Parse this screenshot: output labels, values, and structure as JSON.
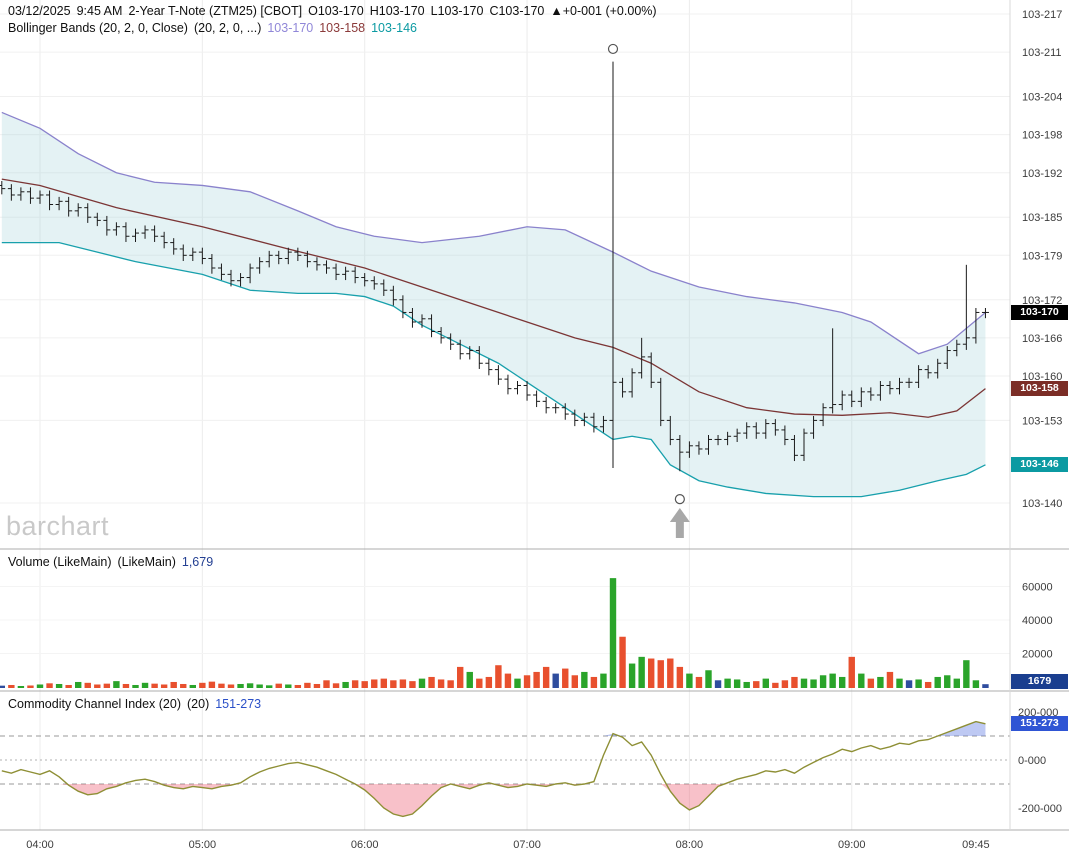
{
  "header": {
    "date": "03/12/2025",
    "time": "9:45 AM",
    "title": "2-Year T-Note (ZTM25) [CBOT]",
    "open": "O103-170",
    "high": "H103-170",
    "low": "L103-170",
    "close": "C103-170",
    "change": "▲+0-001 (+0.00%)",
    "bb_label1": "Bollinger Bands (20, 2, 0, Close)",
    "bb_label2": "(20, 2, 0, ...)",
    "bb_upper_value": "103-170",
    "bb_middle_value": "103-158",
    "bb_lower_value": "103-146"
  },
  "volume_panel": {
    "label1": "Volume (LikeMain)",
    "label2": "(LikeMain)",
    "value": "1,679",
    "badge": "1679"
  },
  "cci_panel": {
    "label1": "Commodity Channel Index (20)",
    "label2": "(20)",
    "value": "151-273",
    "badge": "151-273"
  },
  "badges": {
    "last_price": "103-170",
    "bb_middle": "103-158",
    "bb_lower": "103-146"
  },
  "watermark": "barchart",
  "colors": {
    "bb_upper": "#8a82cc",
    "bb_middle": "#7b3535",
    "bb_lower": "#18a0ac",
    "band_fill": "rgba(147,205,211,0.25)",
    "candle": "#1a1a1a",
    "vol_up": "#2aa42a",
    "vol_down": "#e8502e",
    "vol_flat": "#2f4d9e",
    "cci_line": "#8e8f35",
    "cci_below_fill": "rgba(237,92,112,0.38)",
    "cci_above_fill": "rgba(92,120,226,0.40)",
    "grid": "#ececec",
    "hgrid": "#f0f0f0",
    "divider": "#adadad",
    "badge_last_bg": "#000000",
    "badge_mid_bg": "#7b2d26",
    "badge_low_bg": "#0b9aa2",
    "badge_vol_bg": "#1a3e8f",
    "badge_cci_bg": "#2f55d4",
    "hdr_upper": "#9087d8",
    "hdr_mid": "#8b3a3a",
    "hdr_low": "#0b9aa2",
    "hdr_vol": "#233f92",
    "hdr_cci": "#2b50c8",
    "annotation": "#555555",
    "arrow": "#a8a8a8"
  },
  "chart_data": {
    "type": "ohlc_with_indicators",
    "price_unit_note": "values are 32nds over 103; 17.0 renders as 103-170",
    "opens_rule": "previous close",
    "closes": [
      18.95,
      18.85,
      18.9,
      18.8,
      18.85,
      18.7,
      18.75,
      18.6,
      18.65,
      18.5,
      18.45,
      18.3,
      18.35,
      18.2,
      18.25,
      18.3,
      18.2,
      18.1,
      18.0,
      17.9,
      17.95,
      17.85,
      17.7,
      17.6,
      17.5,
      17.55,
      17.7,
      17.8,
      17.9,
      17.85,
      17.95,
      17.9,
      17.8,
      17.75,
      17.7,
      17.6,
      17.65,
      17.55,
      17.5,
      17.45,
      17.35,
      17.2,
      17.0,
      16.85,
      16.9,
      16.7,
      16.6,
      16.5,
      16.35,
      16.4,
      16.2,
      16.1,
      15.95,
      15.8,
      15.85,
      15.7,
      15.6,
      15.5,
      15.5,
      15.4,
      15.3,
      15.35,
      15.2,
      15.3,
      15.9,
      15.75,
      16.05,
      16.3,
      15.9,
      15.3,
      15.0,
      14.8,
      14.9,
      14.85,
      15.0,
      15.0,
      15.05,
      15.1,
      15.2,
      15.1,
      15.25,
      15.15,
      15.0,
      14.75,
      15.1,
      15.3,
      15.5,
      15.55,
      15.7,
      15.6,
      15.75,
      15.7,
      15.85,
      15.8,
      15.9,
      15.9,
      16.1,
      16.05,
      16.2,
      16.4,
      16.5,
      16.6,
      17.0,
      17.0
    ],
    "bar_overrides": {
      "64": {
        "high": 20.95,
        "low": 14.55
      },
      "67": {
        "high": 16.6
      },
      "71": {
        "low": 14.5
      },
      "87": {
        "high": 16.75
      },
      "101": {
        "high": 17.75
      }
    },
    "bollinger": {
      "upper": [
        [
          0,
          20.15
        ],
        [
          4,
          19.9
        ],
        [
          8,
          19.5
        ],
        [
          12,
          19.2
        ],
        [
          16,
          19.05
        ],
        [
          21,
          19.0
        ],
        [
          26,
          18.9
        ],
        [
          31,
          18.6
        ],
        [
          35,
          18.35
        ],
        [
          39,
          18.2
        ],
        [
          44,
          18.1
        ],
        [
          50,
          18.2
        ],
        [
          55,
          18.35
        ],
        [
          59,
          18.3
        ],
        [
          64,
          17.95
        ],
        [
          68,
          17.65
        ],
        [
          73,
          17.4
        ],
        [
          78,
          17.25
        ],
        [
          83,
          17.15
        ],
        [
          88,
          17.0
        ],
        [
          91,
          16.85
        ],
        [
          96,
          16.35
        ],
        [
          99,
          16.5
        ],
        [
          103,
          17.0
        ]
      ],
      "middle": [
        [
          0,
          19.1
        ],
        [
          4,
          19.0
        ],
        [
          12,
          18.65
        ],
        [
          21,
          18.35
        ],
        [
          30,
          18.0
        ],
        [
          38,
          17.7
        ],
        [
          46,
          17.3
        ],
        [
          55,
          16.85
        ],
        [
          60,
          16.6
        ],
        [
          64,
          16.45
        ],
        [
          68,
          16.2
        ],
        [
          73,
          15.75
        ],
        [
          78,
          15.5
        ],
        [
          83,
          15.4
        ],
        [
          88,
          15.38
        ],
        [
          93,
          15.42
        ],
        [
          97,
          15.35
        ],
        [
          100,
          15.45
        ],
        [
          103,
          15.8
        ]
      ],
      "lower": [
        [
          0,
          18.1
        ],
        [
          6,
          18.1
        ],
        [
          10,
          17.95
        ],
        [
          14,
          17.8
        ],
        [
          21,
          17.6
        ],
        [
          26,
          17.35
        ],
        [
          31,
          17.3
        ],
        [
          35,
          17.3
        ],
        [
          38,
          17.25
        ],
        [
          41,
          17.1
        ],
        [
          44,
          16.8
        ],
        [
          48,
          16.5
        ],
        [
          52,
          16.2
        ],
        [
          55,
          15.9
        ],
        [
          58,
          15.6
        ],
        [
          61,
          15.3
        ],
        [
          64,
          15.0
        ],
        [
          66,
          15.05
        ],
        [
          68,
          15.0
        ],
        [
          70,
          14.6
        ],
        [
          73,
          14.35
        ],
        [
          76,
          14.25
        ],
        [
          80,
          14.15
        ],
        [
          85,
          14.1
        ],
        [
          90,
          14.1
        ],
        [
          94,
          14.2
        ],
        [
          98,
          14.35
        ],
        [
          101,
          14.45
        ],
        [
          103,
          14.6
        ]
      ]
    },
    "volume": [
      800,
      1200,
      600,
      900,
      1500,
      2200,
      1800,
      1200,
      3000,
      2500,
      1500,
      2000,
      3500,
      1800,
      1200,
      2500,
      2000,
      1500,
      3000,
      1800,
      1200,
      2500,
      3200,
      2000,
      1500,
      1800,
      2200,
      1500,
      1000,
      2000,
      1500,
      1200,
      2500,
      1800,
      4000,
      2200,
      3000,
      4000,
      3500,
      4500,
      5000,
      4000,
      4500,
      3500,
      5000,
      6000,
      4500,
      4000,
      12000,
      9000,
      5000,
      6000,
      13000,
      8000,
      5000,
      7000,
      9000,
      12000,
      8000,
      11000,
      7000,
      9000,
      6000,
      8000,
      65000,
      30000,
      14000,
      18000,
      17000,
      16000,
      17000,
      12000,
      8000,
      6000,
      10000,
      4000,
      5000,
      4500,
      3000,
      3500,
      5000,
      2500,
      4000,
      6000,
      5000,
      4500,
      7000,
      8000,
      6000,
      18000,
      8000,
      5000,
      6000,
      9000,
      5000,
      4000,
      4500,
      3000,
      6000,
      7000,
      5000,
      16000,
      4000,
      1679
    ],
    "cci": [
      -45,
      -55,
      -40,
      -50,
      -60,
      -45,
      -70,
      -105,
      -130,
      -145,
      -140,
      -120,
      -110,
      -95,
      -85,
      -80,
      -90,
      -105,
      -115,
      -120,
      -110,
      -115,
      -120,
      -110,
      -105,
      -95,
      -70,
      -50,
      -35,
      -25,
      -15,
      -10,
      -20,
      -30,
      -45,
      -60,
      -80,
      -100,
      -125,
      -160,
      -200,
      -225,
      -235,
      -225,
      -190,
      -150,
      -115,
      -100,
      -110,
      -120,
      -105,
      -95,
      -105,
      -115,
      -110,
      -100,
      -105,
      -110,
      -100,
      -95,
      -105,
      -100,
      -90,
      20,
      110,
      95,
      60,
      75,
      20,
      -60,
      -130,
      -180,
      -208,
      -190,
      -150,
      -110,
      -95,
      -80,
      -70,
      -60,
      -45,
      -50,
      -40,
      -55,
      -30,
      -10,
      10,
      25,
      45,
      35,
      50,
      60,
      45,
      55,
      70,
      65,
      80,
      85,
      100,
      115,
      130,
      145,
      160,
      151
    ],
    "cci_thresholds": {
      "upper": 100,
      "lower": -100,
      "zero": 0
    },
    "x_ticks": [
      {
        "bar": 4,
        "label": "04:00"
      },
      {
        "bar": 21,
        "label": "05:00"
      },
      {
        "bar": 38,
        "label": "06:00"
      },
      {
        "bar": 55,
        "label": "07:00"
      },
      {
        "bar": 72,
        "label": "08:00"
      },
      {
        "bar": 89,
        "label": "09:00"
      },
      {
        "bar": 102,
        "label": "09:45",
        "grid": false
      }
    ],
    "price_axis": [
      {
        "label": "103-217",
        "value": 21.7
      },
      {
        "label": "103-211",
        "value": 21.1
      },
      {
        "label": "103-204",
        "value": 20.4
      },
      {
        "label": "103-198",
        "value": 19.8
      },
      {
        "label": "103-192",
        "value": 19.2
      },
      {
        "label": "103-185",
        "value": 18.5
      },
      {
        "label": "103-179",
        "value": 17.9
      },
      {
        "label": "103-172",
        "value": 17.2
      },
      {
        "label": "103-166",
        "value": 16.6
      },
      {
        "label": "103-160",
        "value": 16.0
      },
      {
        "label": "103-153",
        "value": 15.3
      },
      {
        "label": "103-140",
        "value": 14.0
      }
    ],
    "volume_axis": [
      {
        "label": "60000",
        "value": 60000
      },
      {
        "label": "40000",
        "value": 40000
      },
      {
        "label": "20000",
        "value": 20000
      }
    ],
    "cci_axis": [
      {
        "label": "200-000",
        "value": 200
      },
      {
        "label": "0-000",
        "value": 0
      },
      {
        "label": "-200-000",
        "value": -200
      }
    ],
    "annotations": {
      "spike_top_circle": {
        "bar": 64,
        "price": 21.15
      },
      "low_circle": {
        "bar": 71,
        "price": 14.06
      },
      "up_arrow": {
        "bar": 71,
        "price_top": 13.92
      }
    }
  }
}
